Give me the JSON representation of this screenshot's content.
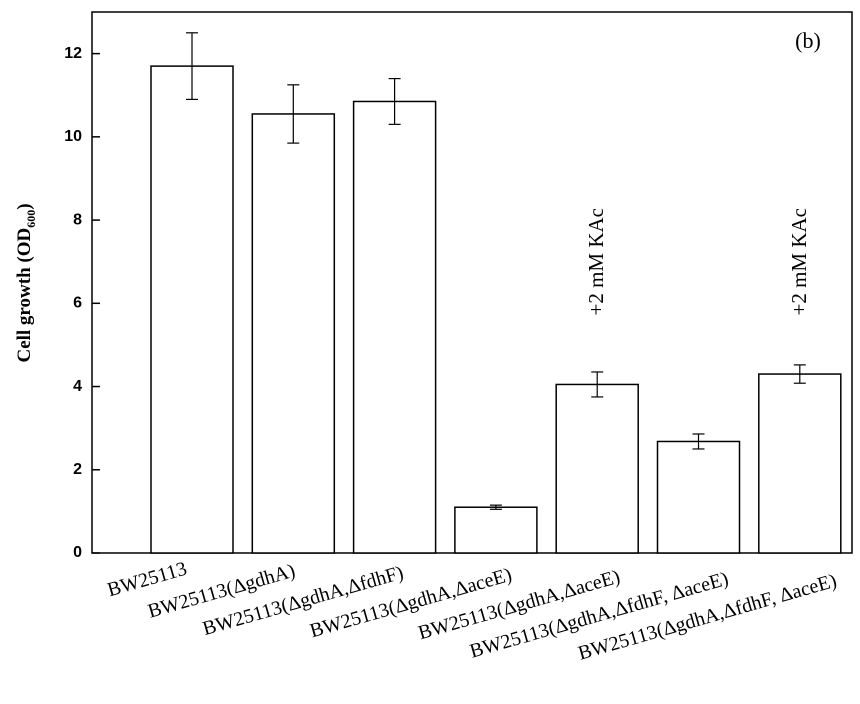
{
  "chart_data": {
    "type": "bar",
    "panel_label": "(b)",
    "y_label": {
      "text": "Cell growth (OD",
      "subscript": "600",
      "close": ")"
    },
    "categories": [
      "BW25113",
      "BW25113(ΔgdhA)",
      "BW25113(ΔgdhA,ΔfdhF)",
      "BW25113(ΔgdhA,ΔaceE)",
      "BW25113(ΔgdhA,ΔaceE)",
      "BW25113(ΔgdhA,ΔfdhF, ΔaceE)",
      "BW25113(ΔgdhA,ΔfdhF, ΔaceE)"
    ],
    "values": [
      11.7,
      10.55,
      10.85,
      1.1,
      4.05,
      2.68,
      4.3
    ],
    "errors": [
      0.8,
      0.7,
      0.55,
      0.05,
      0.3,
      0.18,
      0.22
    ],
    "annotations": [
      {
        "index": 4,
        "text": "+2 mM KAc"
      },
      {
        "index": 6,
        "text": "+2 mM KAc"
      }
    ],
    "color": "#ffffff",
    "ylim": [
      0,
      13
    ],
    "yticks": [
      0,
      2,
      4,
      6,
      8,
      10,
      12
    ]
  }
}
